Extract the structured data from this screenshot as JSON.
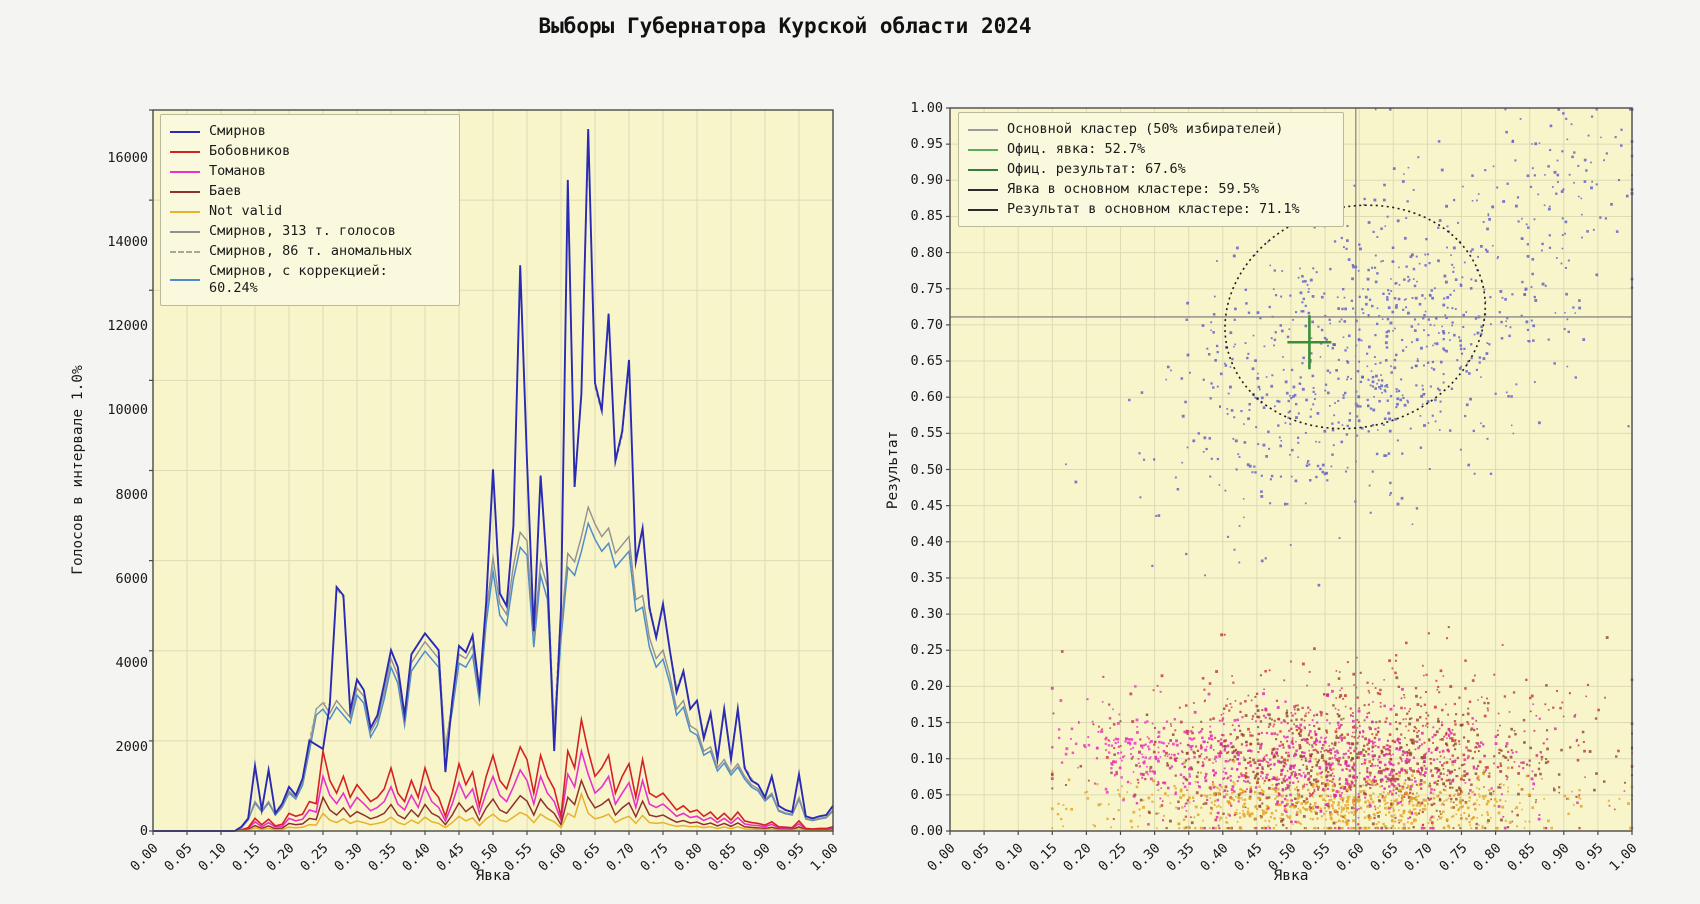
{
  "title": "Выборы Губернатора Курской области 2024",
  "colors": {
    "page_bg": "#f4f4f3",
    "plot_bg": "#f8f5cb",
    "grid": "#dedbb4",
    "axis": "#4a4a4a",
    "legend_bg": "#fbf9dd",
    "crosshair": "#8a8a8a",
    "ellipse": "#1a1a1a",
    "cross": "#3c8c3c"
  },
  "axes": {
    "x_tick_labels": [
      "0.00",
      "0.05",
      "0.10",
      "0.15",
      "0.20",
      "0.25",
      "0.30",
      "0.35",
      "0.40",
      "0.45",
      "0.50",
      "0.55",
      "0.60",
      "0.65",
      "0.70",
      "0.75",
      "0.80",
      "0.85",
      "0.90",
      "0.95",
      "1.00"
    ],
    "left_y_tick_labels": [
      "0",
      "2000",
      "4000",
      "6000",
      "8000",
      "10000",
      "12000",
      "14000",
      "16000"
    ],
    "right_y_tick_labels": [
      "0.00",
      "0.05",
      "0.10",
      "0.15",
      "0.20",
      "0.25",
      "0.30",
      "0.35",
      "0.40",
      "0.45",
      "0.50",
      "0.55",
      "0.60",
      "0.65",
      "0.70",
      "0.75",
      "0.80",
      "0.85",
      "0.90",
      "0.95",
      "1.00"
    ]
  },
  "chart_data": [
    {
      "type": "line",
      "xlabel": "Явка",
      "ylabel": "Голосов в интервале 1.0%",
      "xlim": [
        0,
        1
      ],
      "ylim": [
        0,
        17142
      ],
      "x_start": 0.13,
      "x_step": 0.01,
      "draw_order": [
        2,
        1,
        3,
        4,
        7,
        5,
        6,
        0
      ],
      "series": [
        {
          "name": "Смирнов",
          "color": "#2a2ab4",
          "width": 1.9,
          "values": [
            100,
            300,
            1550,
            500,
            1450,
            420,
            650,
            1050,
            850,
            1250,
            2150,
            2050,
            1950,
            3000,
            5800,
            5600,
            2850,
            3600,
            3350,
            2450,
            2750,
            3500,
            4300,
            3900,
            2750,
            4200,
            4450,
            4700,
            4500,
            4300,
            1400,
            3100,
            4400,
            4250,
            4650,
            3350,
            5450,
            8600,
            5650,
            5350,
            7250,
            13450,
            8800,
            4750,
            8450,
            6100,
            1900,
            5300,
            15480,
            8180,
            10400,
            16690,
            10650,
            10000,
            12300,
            8800,
            9500,
            11200,
            6400,
            7200,
            5300,
            4600,
            5400,
            4300,
            3300,
            3800,
            2900,
            3100,
            2200,
            2800,
            1700,
            2900,
            1700,
            2900,
            1500,
            1200,
            1100,
            800,
            1300,
            600,
            500,
            450,
            1350,
            350,
            300,
            350,
            380,
            600
          ]
        },
        {
          "name": "Бобовников",
          "color": "#d42222",
          "width": 1.6,
          "values": [
            30,
            80,
            300,
            150,
            280,
            120,
            160,
            420,
            350,
            400,
            700,
            650,
            1900,
            1200,
            900,
            1300,
            800,
            1100,
            900,
            700,
            800,
            1000,
            1500,
            900,
            700,
            1200,
            800,
            1500,
            1000,
            800,
            350,
            900,
            1600,
            1100,
            1400,
            600,
            1300,
            1800,
            1200,
            1000,
            1500,
            2000,
            1700,
            900,
            1800,
            1300,
            1000,
            350,
            1900,
            1500,
            2650,
            1900,
            1300,
            1500,
            1800,
            900,
            1300,
            1600,
            800,
            1700,
            900,
            800,
            900,
            700,
            500,
            600,
            450,
            500,
            350,
            450,
            280,
            420,
            260,
            450,
            240,
            200,
            180,
            140,
            220,
            100,
            90,
            80,
            240,
            60,
            50,
            60,
            60,
            100
          ]
        },
        {
          "name": "Томанов",
          "color": "#e832c8",
          "width": 1.6,
          "values": [
            20,
            60,
            220,
            100,
            200,
            90,
            110,
            300,
            240,
            280,
            500,
            450,
            1300,
            850,
            650,
            900,
            550,
            800,
            650,
            480,
            560,
            700,
            1050,
            640,
            500,
            850,
            560,
            1050,
            700,
            560,
            240,
            640,
            1150,
            780,
            1000,
            420,
            900,
            1300,
            850,
            700,
            1050,
            1450,
            1200,
            640,
            1300,
            900,
            700,
            250,
            1350,
            1050,
            1900,
            1350,
            900,
            1050,
            1300,
            640,
            900,
            1150,
            560,
            1200,
            640,
            560,
            640,
            500,
            350,
            420,
            320,
            350,
            250,
            320,
            200,
            300,
            180,
            320,
            170,
            140,
            130,
            100,
            160,
            70,
            60,
            60,
            170,
            40,
            35,
            40,
            45,
            70
          ]
        },
        {
          "name": "Баев",
          "color": "#8e3228",
          "width": 1.5,
          "values": [
            12,
            35,
            130,
            60,
            120,
            50,
            65,
            180,
            150,
            170,
            300,
            270,
            800,
            500,
            380,
            550,
            340,
            460,
            380,
            290,
            340,
            420,
            630,
            380,
            290,
            500,
            340,
            630,
            420,
            340,
            150,
            380,
            670,
            460,
            590,
            250,
            550,
            760,
            500,
            420,
            630,
            840,
            710,
            380,
            760,
            550,
            420,
            150,
            800,
            630,
            1200,
            800,
            550,
            630,
            760,
            380,
            550,
            670,
            340,
            710,
            380,
            340,
            380,
            290,
            210,
            250,
            190,
            210,
            150,
            190,
            120,
            180,
            110,
            190,
            100,
            85,
            75,
            60,
            90,
            42,
            38,
            34,
            100,
            25,
            21,
            25,
            25,
            42
          ]
        },
        {
          "name": "Not valid",
          "color": "#e6b22e",
          "width": 1.5,
          "values": [
            8,
            18,
            70,
            35,
            60,
            26,
            35,
            90,
            77,
            88,
            150,
            140,
            420,
            260,
            200,
            290,
            180,
            240,
            200,
            150,
            180,
            220,
            330,
            200,
            150,
            260,
            180,
            330,
            220,
            180,
            80,
            200,
            350,
            240,
            310,
            130,
            290,
            400,
            260,
            220,
            330,
            440,
            370,
            200,
            400,
            290,
            220,
            80,
            420,
            330,
            880,
            420,
            290,
            330,
            400,
            200,
            290,
            350,
            180,
            370,
            200,
            180,
            200,
            150,
            110,
            130,
            100,
            110,
            80,
            100,
            60,
            95,
            55,
            100,
            50,
            44,
            40,
            30,
            48,
            22,
            20,
            18,
            52,
            13,
            11,
            13,
            13,
            22
          ]
        },
        {
          "name": "Смирнов, 313 т. голосов",
          "color": "#909090",
          "width": 1.4,
          "values": [
            80,
            280,
            700,
            480,
            700,
            400,
            600,
            950,
            800,
            1150,
            2000,
            2900,
            3050,
            2800,
            3100,
            2900,
            2700,
            3400,
            3200,
            2350,
            2650,
            3300,
            4100,
            3700,
            2650,
            4000,
            4250,
            4500,
            4300,
            4100,
            2000,
            3000,
            4200,
            4100,
            4400,
            3250,
            5200,
            6500,
            5400,
            5150,
            6300,
            7100,
            6900,
            4600,
            6400,
            5800,
            2500,
            4800,
            6600,
            6400,
            7000,
            7700,
            7300,
            7000,
            7200,
            6600,
            6800,
            7000,
            5500,
            5600,
            4600,
            4100,
            4300,
            3700,
            2900,
            3100,
            2500,
            2400,
            1900,
            2000,
            1500,
            1700,
            1400,
            1600,
            1300,
            1100,
            1000,
            750,
            900,
            500,
            430,
            400,
            800,
            300,
            260,
            300,
            330,
            500
          ]
        },
        {
          "name": "Смирнов, 86 т. аномальных",
          "color": "#a8a896",
          "width": 1.4,
          "dash": [
            4,
            3
          ],
          "values": [
            100,
            300,
            1550,
            500,
            1450,
            420,
            650,
            1050,
            850,
            1250,
            2150,
            2900,
            3050,
            3000,
            5750,
            5550,
            2850,
            3600,
            3350,
            2450,
            2750,
            3500,
            4300,
            3900,
            2750,
            4200,
            4450,
            4700,
            4500,
            4300,
            2000,
            3100,
            4400,
            4250,
            4650,
            3350,
            5450,
            8500,
            5650,
            5350,
            7250,
            13300,
            8750,
            4750,
            8350,
            6100,
            2500,
            5300,
            15300,
            8180,
            10400,
            16500,
            10550,
            9950,
            12150,
            8750,
            9400,
            11050,
            6400,
            7150,
            5400,
            4600,
            5350,
            4300,
            3400,
            3800,
            2900,
            3100,
            2300,
            2800,
            1750,
            2900,
            1750,
            2900,
            1550,
            1250,
            1100,
            800,
            1300,
            600,
            500,
            450,
            1350,
            350,
            300,
            350,
            380,
            600
          ]
        },
        {
          "name": "Смирнов, с коррекцией:\n  60.24%",
          "color": "#4e8ec8",
          "width": 1.5,
          "values": [
            76,
            266,
            665,
            456,
            665,
            380,
            570,
            903,
            760,
            1093,
            1900,
            2755,
            2898,
            2660,
            2945,
            2755,
            2565,
            3230,
            3040,
            2233,
            2518,
            3135,
            3895,
            3515,
            2518,
            3800,
            4038,
            4275,
            4085,
            3895,
            1900,
            2850,
            3990,
            3895,
            4180,
            3088,
            4940,
            6175,
            5130,
            4893,
            5985,
            6745,
            6555,
            4370,
            6080,
            5510,
            2375,
            4560,
            6270,
            6080,
            6650,
            7315,
            6935,
            6650,
            6840,
            6270,
            6460,
            6650,
            5225,
            5320,
            4370,
            3895,
            4085,
            3515,
            2755,
            2945,
            2375,
            2280,
            1805,
            1900,
            1425,
            1615,
            1330,
            1520,
            1235,
            1045,
            950,
            713,
            855,
            475,
            409,
            380,
            760,
            285,
            247,
            285,
            314,
            475
          ]
        }
      ]
    },
    {
      "type": "scatter",
      "xlabel": "Явка",
      "ylabel": "Результат",
      "xlim": [
        0,
        1
      ],
      "ylim": [
        0,
        1
      ],
      "legend": [
        {
          "label": "Основной кластер (50% избирателей)",
          "color": "#9a9a9a"
        },
        {
          "label": "Офиц. явка: 52.7%",
          "color": "#5aab5a"
        },
        {
          "label": "Офиц. результат: 67.6%",
          "color": "#3a7d3a"
        },
        {
          "label": "Явка в основном кластере: 59.5%",
          "color": "#2b2b2b"
        },
        {
          "label": "Результат в основном кластере: 71.1%",
          "color": "#2b2b2b"
        }
      ],
      "official": {
        "turnout": 0.527,
        "result": 0.676
      },
      "main_cluster": {
        "share": "50% избирателей",
        "turnout": 0.595,
        "result": 0.711
      },
      "ellipse": {
        "cx": 0.594,
        "cy": 0.711,
        "rx": 0.193,
        "ry": 0.152,
        "rot_deg": -16
      },
      "seed": 42,
      "clusters": [
        {
          "name": "Смирнов",
          "color": "#5a5ac8",
          "count": 820,
          "cx": 0.615,
          "cy": 0.665,
          "sx": 0.145,
          "sy": 0.115,
          "corr": 0.45,
          "clip": [
            0.17,
            1.0,
            0.34,
            0.998
          ]
        },
        {
          "name": "Смирнов (высокая явка)",
          "color": "#5a5ac8",
          "count": 85,
          "cx": 0.9,
          "cy": 0.9,
          "sx": 0.07,
          "sy": 0.06,
          "corr": 0.2,
          "clip": [
            0.6,
            1.0,
            0.6,
            0.998
          ]
        },
        {
          "name": "Бобовников",
          "color": "#c83030",
          "count": 650,
          "cx": 0.58,
          "cy": 0.115,
          "sx": 0.16,
          "sy": 0.055,
          "corr": 0,
          "clip": [
            0.15,
            1.0,
            0.004,
            0.32
          ]
        },
        {
          "name": "Баев",
          "color": "#8c4628",
          "count": 600,
          "cx": 0.6,
          "cy": 0.09,
          "sx": 0.17,
          "sy": 0.05,
          "corr": 0,
          "clip": [
            0.15,
            1.0,
            0.004,
            0.3
          ]
        },
        {
          "name": "Not valid",
          "color": "#e2a122",
          "count": 720,
          "cx": 0.58,
          "cy": 0.035,
          "sx": 0.17,
          "sy": 0.022,
          "corr": 0,
          "clip": [
            0.15,
            1.0,
            0.004,
            0.12
          ]
        },
        {
          "name": "Томанов",
          "color": "#e020b4",
          "count": 640,
          "cx": 0.55,
          "cy": 0.095,
          "sx": 0.15,
          "sy": 0.042,
          "corr": 0,
          "clip": [
            0.15,
            1.0,
            0.004,
            0.3
          ]
        },
        {
          "name": "Томанов (сгусток)",
          "color": "#ea2ec0",
          "count": 130,
          "cx": 0.28,
          "cy": 0.115,
          "sx": 0.05,
          "sy": 0.028,
          "corr": 0,
          "clip": [
            0.16,
            0.45,
            0.02,
            0.2
          ]
        }
      ]
    }
  ]
}
